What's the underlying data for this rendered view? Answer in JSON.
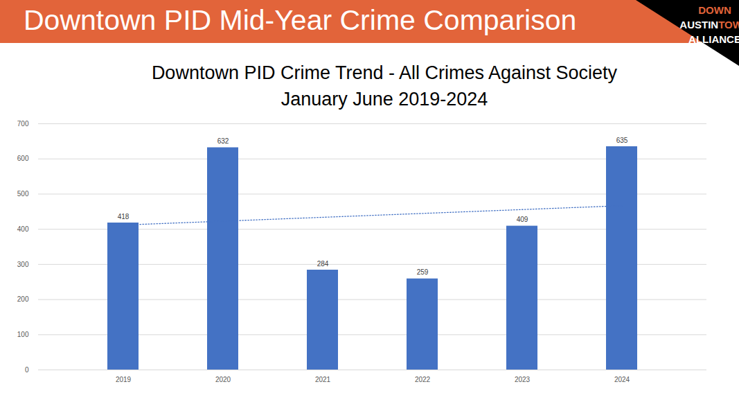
{
  "header": {
    "title": "Downtown PID Mid-Year Crime Comparison",
    "logo": [
      [
        "DOWN"
      ],
      [
        "AUSTIN",
        "TOWN"
      ],
      [
        "ALLIANCE"
      ]
    ]
  },
  "chart_data": {
    "type": "bar",
    "title": "Downtown PID Crime Trend - All Crimes Against Society",
    "subtitle": "January June 2019-2024",
    "categories": [
      "2019",
      "2020",
      "2021",
      "2022",
      "2023",
      "2024"
    ],
    "series": [
      {
        "type": "bar",
        "color": "#4472c4",
        "data_labels": true,
        "values": [
          418,
          632,
          284,
          259,
          409,
          635
        ]
      },
      {
        "type": "line",
        "color": "#4472c4",
        "line_style": "dotted",
        "values": [
          412,
          423,
          434,
          445,
          456,
          467
        ]
      }
    ],
    "ylim": [
      0,
      700
    ],
    "yticks": [
      0,
      100,
      200,
      300,
      400,
      500,
      600,
      700
    ],
    "grid": true
  }
}
